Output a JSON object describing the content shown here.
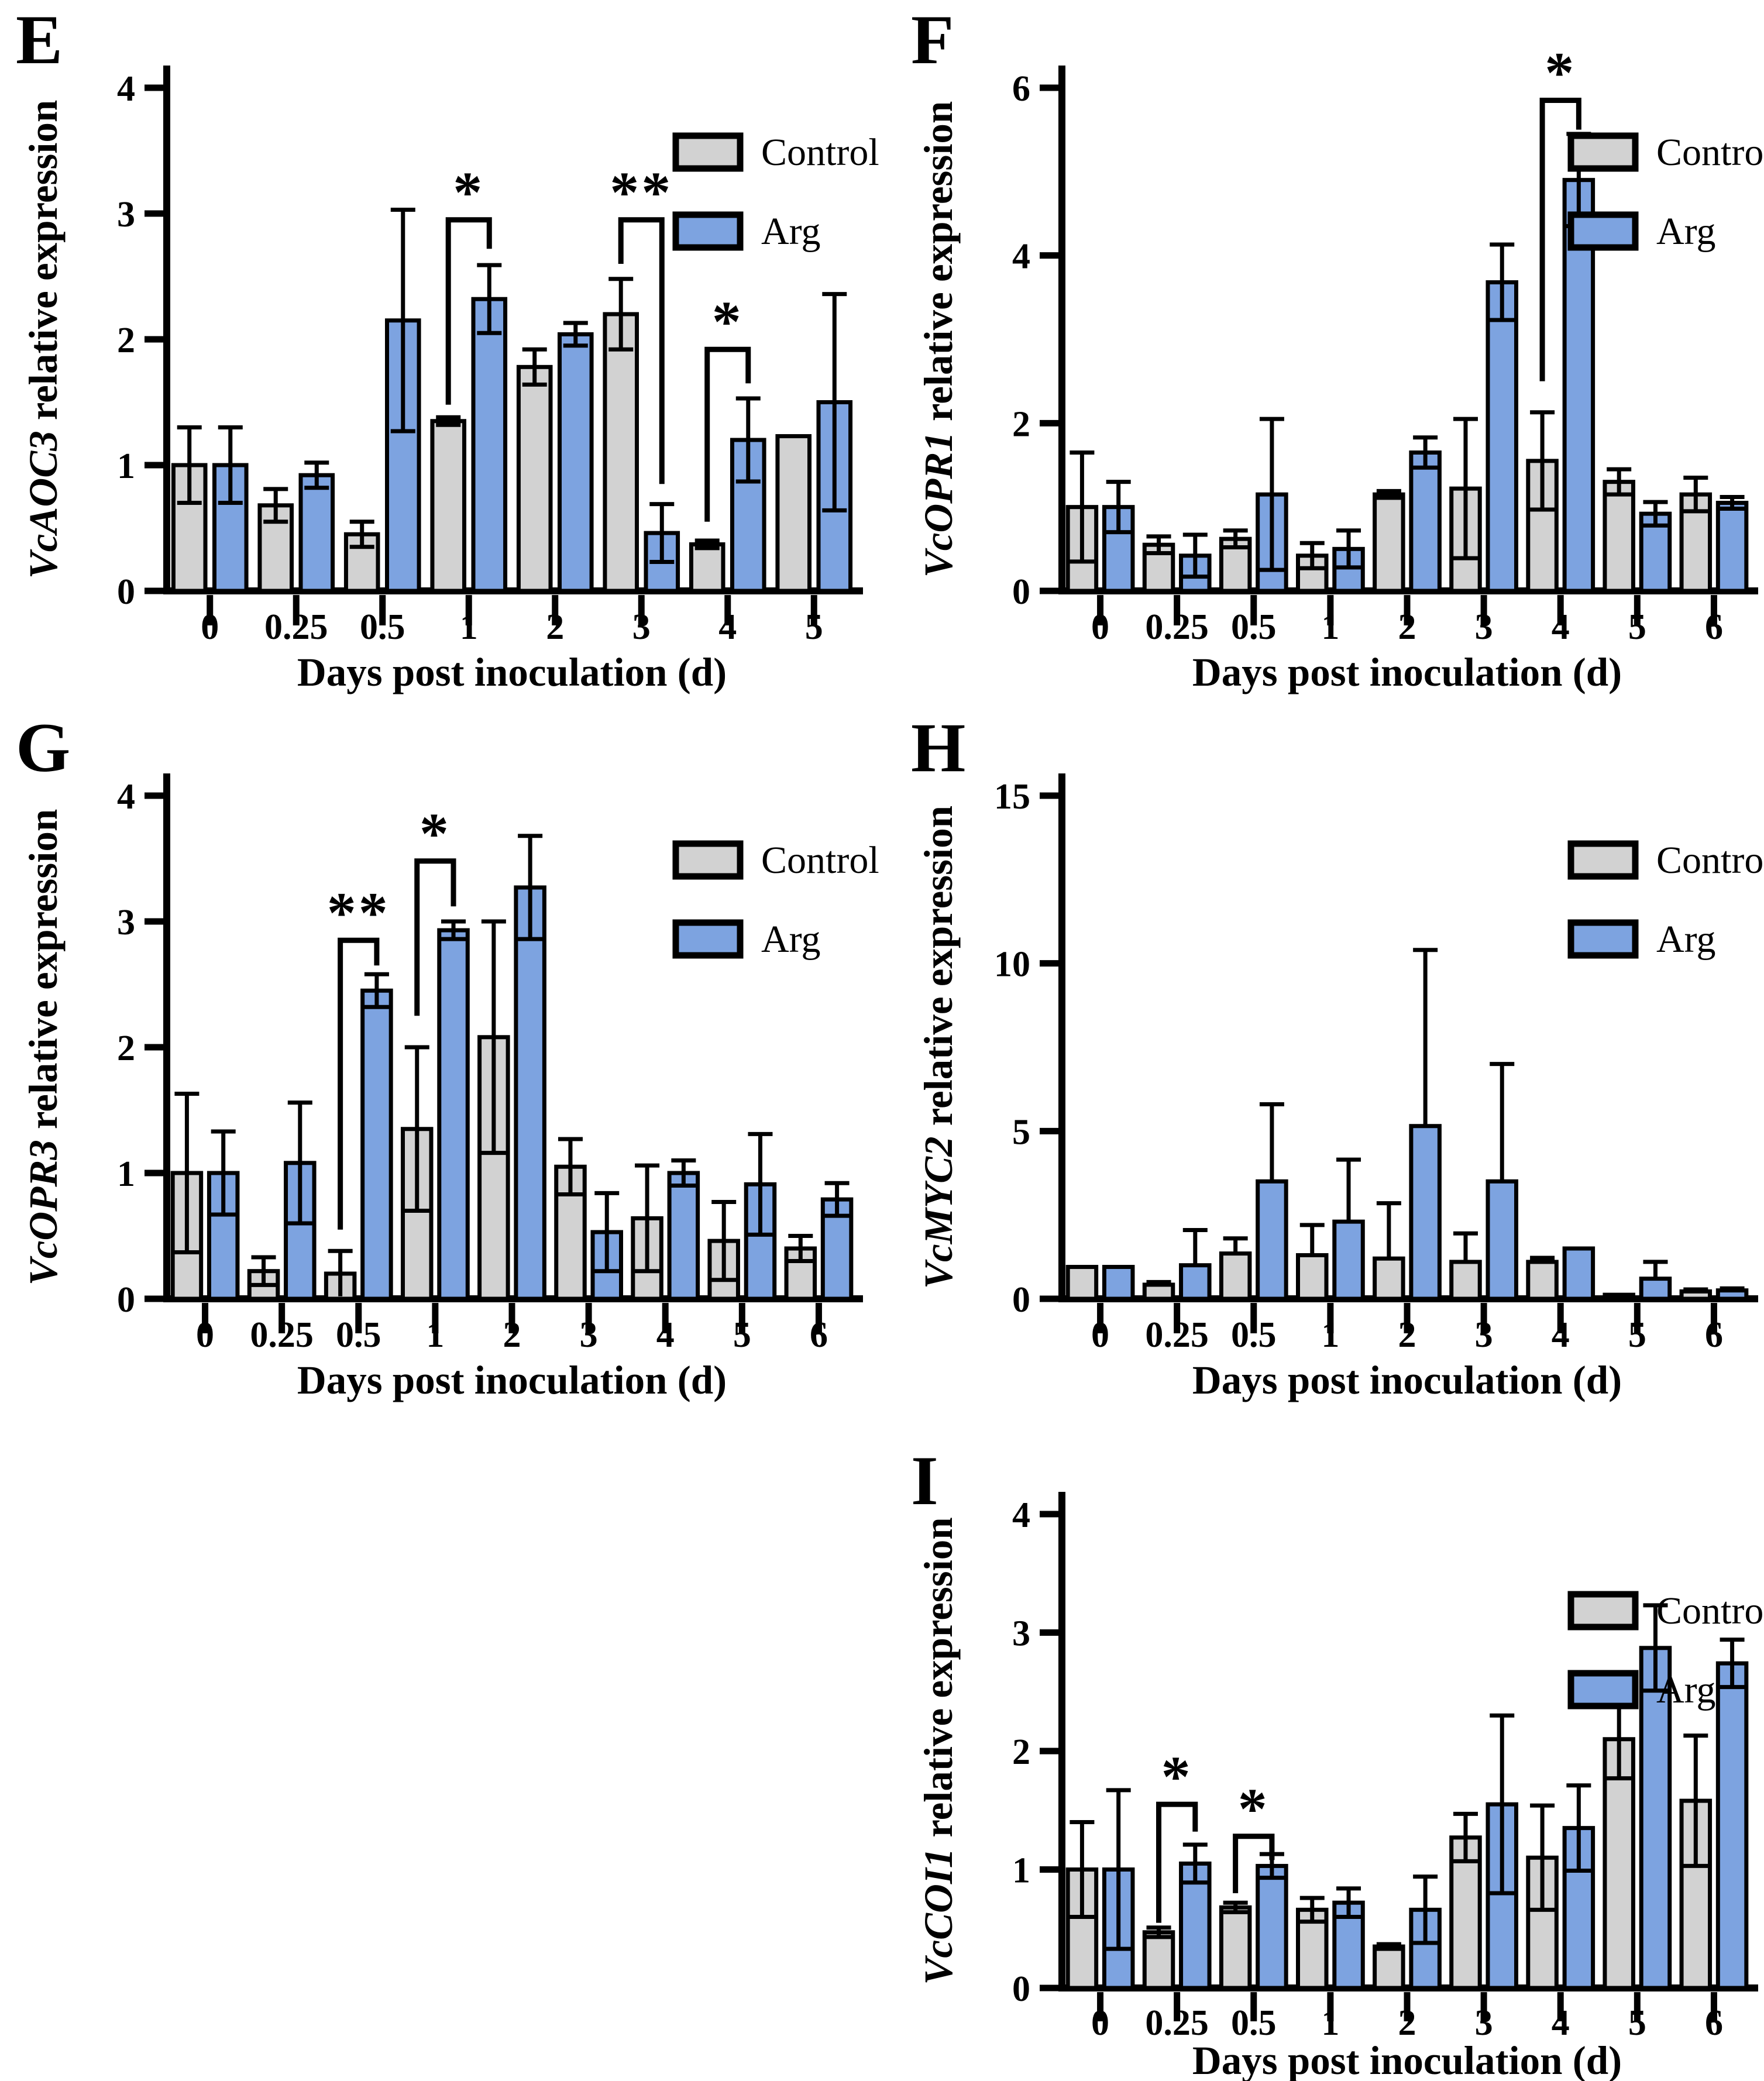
{
  "figure": {
    "panel_letters": [
      "E",
      "F",
      "G",
      "H",
      "I"
    ],
    "legend": {
      "control_label": "Control",
      "arg_label": "Arg"
    },
    "xlabel": "Days post inoculation (d)",
    "colors": {
      "control_fill": "#d2d2d2",
      "arg_fill": "#7da3e0",
      "outline": "#000000",
      "background": "#ffffff",
      "text": "#000000"
    }
  },
  "chart_data": [
    {
      "panel": "E",
      "type": "bar",
      "gene": "VcAOC3",
      "ylabel_rest": "relative expression",
      "title": "VcAOC3 relative expression",
      "xlabel": "Days post inoculation (d)",
      "categories": [
        "0",
        "0.25",
        "0.5",
        "1",
        "2",
        "3",
        "4",
        "5"
      ],
      "ylim": [
        0,
        4
      ],
      "yticks": [
        0,
        1,
        2,
        3,
        4
      ],
      "grid": false,
      "legend_position": "top-right",
      "error_direction": "both",
      "series": [
        {
          "name": "Control",
          "values": [
            1.0,
            0.68,
            0.45,
            1.35,
            1.78,
            2.2,
            0.37,
            1.23
          ],
          "errors": [
            0.3,
            0.13,
            0.1,
            0.03,
            0.14,
            0.28,
            0.03,
            0
          ]
        },
        {
          "name": "Arg",
          "values": [
            1.0,
            0.92,
            2.15,
            2.32,
            2.04,
            0.46,
            1.2,
            1.5
          ],
          "errors": [
            0.3,
            0.1,
            0.88,
            0.27,
            0.09,
            0.23,
            0.33,
            0.86
          ]
        }
      ],
      "significance": [
        {
          "category": "1",
          "label": "*",
          "bracket_top": 2.95,
          "left_arm_down_to": 1.48,
          "right_arm_down_to": 2.72
        },
        {
          "category": "3",
          "label": "**",
          "bracket_top": 2.95,
          "left_arm_down_to": 2.6,
          "right_arm_down_to": 0.85
        },
        {
          "category": "4",
          "label": "*",
          "bracket_top": 1.92,
          "left_arm_down_to": 0.55,
          "right_arm_down_to": 1.65
        }
      ]
    },
    {
      "panel": "F",
      "type": "bar",
      "gene": "VcOPR1",
      "ylabel_rest": "relative expression",
      "title": "VcOPR1 relative expression",
      "xlabel": "Days post inoculation (d)",
      "categories": [
        "0",
        "0.25",
        "0.5",
        "1",
        "2",
        "3",
        "4",
        "5",
        "6"
      ],
      "ylim": [
        0,
        6
      ],
      "yticks": [
        0,
        2,
        4,
        6
      ],
      "grid": false,
      "legend_position": "top-right",
      "error_direction": "both",
      "series": [
        {
          "name": "Control",
          "values": [
            1.0,
            0.55,
            0.62,
            0.42,
            1.15,
            1.22,
            1.55,
            1.3,
            1.15
          ],
          "errors": [
            0.65,
            0.1,
            0.1,
            0.15,
            0.04,
            0.83,
            0.58,
            0.15,
            0.2
          ]
        },
        {
          "name": "Arg",
          "values": [
            1.0,
            0.42,
            1.15,
            0.5,
            1.65,
            3.68,
            4.9,
            0.92,
            1.05
          ],
          "errors": [
            0.3,
            0.25,
            0.9,
            0.22,
            0.18,
            0.45,
            0.55,
            0.14,
            0.07
          ]
        }
      ],
      "significance": [
        {
          "category": "4",
          "label": "*",
          "bracket_top": 5.85,
          "left_arm_down_to": 2.5,
          "right_arm_down_to": 5.5
        }
      ]
    },
    {
      "panel": "G",
      "type": "bar",
      "gene": "VcOPR3",
      "ylabel_rest": "relative expression",
      "title": "VcOPR3 relative expression",
      "xlabel": "Days post inoculation (d)",
      "categories": [
        "0",
        "0.25",
        "0.5",
        "1",
        "2",
        "3",
        "4",
        "5",
        "6"
      ],
      "ylim": [
        0,
        4
      ],
      "yticks": [
        0,
        1,
        2,
        3,
        4
      ],
      "grid": false,
      "legend_position": "top-right",
      "error_direction": "both",
      "series": [
        {
          "name": "Control",
          "values": [
            1.0,
            0.22,
            0.2,
            1.35,
            2.08,
            1.05,
            0.64,
            0.46,
            0.4
          ],
          "errors": [
            0.63,
            0.11,
            0.18,
            0.65,
            0.92,
            0.22,
            0.42,
            0.31,
            0.1
          ]
        },
        {
          "name": "Arg",
          "values": [
            1.0,
            1.08,
            2.45,
            2.93,
            3.27,
            0.53,
            1.0,
            0.91,
            0.79
          ],
          "errors": [
            0.33,
            0.48,
            0.13,
            0.07,
            0.41,
            0.31,
            0.1,
            0.4,
            0.13
          ]
        }
      ],
      "significance": [
        {
          "category": "0.5",
          "label": "**",
          "bracket_top": 2.85,
          "left_arm_down_to": 0.55,
          "right_arm_down_to": 2.65
        },
        {
          "category": "1",
          "label": "*",
          "bracket_top": 3.48,
          "left_arm_down_to": 2.25,
          "right_arm_down_to": 3.12
        }
      ]
    },
    {
      "panel": "H",
      "type": "bar",
      "gene": "VcMYC2",
      "ylabel_rest": "relative expression",
      "title": "VcMYC2 relative expression",
      "xlabel": "Days post inoculation (d)",
      "categories": [
        "0",
        "0.25",
        "0.5",
        "1",
        "2",
        "3",
        "4",
        "5",
        "6"
      ],
      "ylim": [
        0,
        15
      ],
      "yticks": [
        0,
        5,
        10,
        15
      ],
      "grid": false,
      "legend_position": "top-right",
      "error_direction": "up",
      "series": [
        {
          "name": "Control",
          "values": [
            0.95,
            0.42,
            1.35,
            1.3,
            1.2,
            1.1,
            1.1,
            0.12,
            0.22
          ],
          "errors": [
            0,
            0.08,
            0.45,
            0.9,
            1.65,
            0.85,
            0.12,
            0,
            0.06
          ]
        },
        {
          "name": "Arg",
          "values": [
            0.95,
            1.0,
            3.5,
            2.3,
            5.15,
            3.5,
            1.5,
            0.6,
            0.25
          ],
          "errors": [
            0,
            1.05,
            2.3,
            1.85,
            5.25,
            3.5,
            0,
            0.5,
            0.06
          ]
        }
      ],
      "significance": []
    },
    {
      "panel": "I",
      "type": "bar",
      "gene": "VcCOI1",
      "ylabel_rest": "relative expression",
      "title": "VcCOI1 relative expression",
      "xlabel": "Days post inoculation (d)",
      "categories": [
        "0",
        "0.25",
        "0.5",
        "1",
        "2",
        "3",
        "4",
        "5",
        "6"
      ],
      "ylim": [
        0,
        4
      ],
      "yticks": [
        0,
        1,
        2,
        3,
        4
      ],
      "grid": false,
      "legend_position": "top-right",
      "error_direction": "both",
      "series": [
        {
          "name": "Control",
          "values": [
            1.0,
            0.47,
            0.68,
            0.66,
            0.35,
            1.27,
            1.1,
            2.1,
            1.58
          ],
          "errors": [
            0.4,
            0.04,
            0.04,
            0.1,
            0.02,
            0.2,
            0.44,
            0.33,
            0.55
          ]
        },
        {
          "name": "Arg",
          "values": [
            1.0,
            1.05,
            1.03,
            0.72,
            0.66,
            1.55,
            1.35,
            2.87,
            2.74
          ],
          "errors": [
            0.67,
            0.16,
            0.1,
            0.12,
            0.28,
            0.75,
            0.36,
            0.36,
            0.2
          ]
        }
      ],
      "significance": [
        {
          "category": "0.25",
          "label": "*",
          "bracket_top": 1.55,
          "left_arm_down_to": 0.55,
          "right_arm_down_to": 1.32
        },
        {
          "category": "0.5",
          "label": "*",
          "bracket_top": 1.28,
          "left_arm_down_to": 0.8,
          "right_arm_down_to": 1.08
        }
      ]
    }
  ]
}
